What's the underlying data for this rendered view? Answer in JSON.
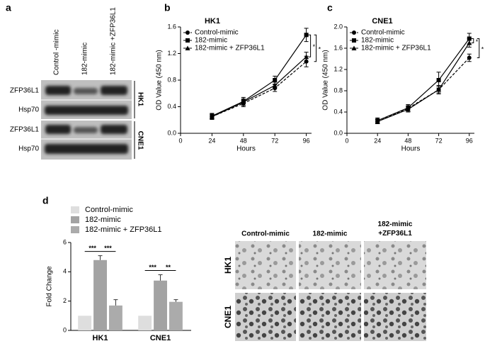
{
  "panel_labels": [
    "a",
    "b",
    "c",
    "d"
  ],
  "blot": {
    "columns": [
      "Control -mimic",
      "182-mimic",
      "182-mimic +ZFP36L1"
    ],
    "rows": [
      "ZFP36L1",
      "Hsp70",
      "ZFP36L1",
      "Hsp70"
    ],
    "groups": [
      "HK1",
      "CNE1"
    ]
  },
  "micrographs": {
    "columns": [
      "Control-mimic",
      "182-mimic",
      "182-mimic +ZFP36L1"
    ],
    "rows": [
      "HK1",
      "CNE1"
    ]
  },
  "chart_data": [
    {
      "type": "line",
      "title": "HK1",
      "xlabel": "Hours",
      "ylabel": "OD Value (450 nm)",
      "x": [
        24,
        48,
        72,
        96
      ],
      "xlim": [
        0,
        100
      ],
      "xticks": [
        0,
        24,
        48,
        72,
        96
      ],
      "ylim": [
        0,
        1.6
      ],
      "yticks": [
        {
          "value": 0,
          "label": "0.0"
        },
        0.4,
        0.8,
        1.2,
        1.6
      ],
      "series": [
        {
          "name": "Control-mimic",
          "color": "#000000",
          "marker": "circle",
          "line_style": "dashed",
          "values": [
            0.25,
            0.45,
            0.68,
            1.08
          ],
          "errors": [
            0.04,
            0.05,
            0.05,
            0.08
          ]
        },
        {
          "name": "182-mimic",
          "color": "#000000",
          "marker": "square",
          "line_style": "solid",
          "values": [
            0.26,
            0.48,
            0.8,
            1.48
          ],
          "errors": [
            0.04,
            0.06,
            0.06,
            0.1
          ]
        },
        {
          "name": "182-mimic + ZFP36L1",
          "color": "#000000",
          "marker": "triangle",
          "line_style": "solid",
          "values": [
            0.25,
            0.47,
            0.72,
            1.15
          ],
          "errors": [
            0.04,
            0.05,
            0.05,
            0.07
          ]
        }
      ],
      "annotations": [
        "*",
        "*"
      ]
    },
    {
      "type": "line",
      "title": "CNE1",
      "xlabel": "Hours",
      "ylabel": "OD Value (450 nm)",
      "x": [
        24,
        48,
        72,
        96
      ],
      "xlim": [
        0,
        100
      ],
      "xticks": [
        0,
        24,
        48,
        72,
        96
      ],
      "ylim": [
        0,
        2
      ],
      "yticks": [
        {
          "value": 0,
          "label": "0.0"
        },
        0.4,
        0.8,
        1.2,
        1.6,
        {
          "value": 2,
          "label": "2.0"
        }
      ],
      "series": [
        {
          "name": "Control-mimic",
          "color": "#000000",
          "marker": "circle",
          "line_style": "dashed",
          "values": [
            0.22,
            0.47,
            0.82,
            1.42
          ],
          "errors": [
            0.04,
            0.05,
            0.06,
            0.07
          ]
        },
        {
          "name": "182-mimic",
          "color": "#000000",
          "marker": "square",
          "line_style": "solid",
          "values": [
            0.24,
            0.48,
            1.0,
            1.78
          ],
          "errors": [
            0.05,
            0.06,
            0.15,
            0.1
          ]
        },
        {
          "name": "182-mimic + ZFP36L1",
          "color": "#000000",
          "marker": "triangle",
          "line_style": "solid",
          "values": [
            0.22,
            0.45,
            0.82,
            1.7
          ],
          "errors": [
            0.04,
            0.05,
            0.08,
            0.08
          ]
        }
      ],
      "annotations": [
        "*",
        "*"
      ]
    },
    {
      "type": "bar",
      "ylabel": "Fold Change",
      "categories": [
        "HK1",
        "CNE1"
      ],
      "ylim": [
        0,
        6
      ],
      "yticks": [
        0,
        2,
        4,
        6
      ],
      "series": [
        {
          "name": "Control-mimic",
          "color": "#dedede",
          "values": [
            1,
            1
          ],
          "errors": [
            0,
            0
          ]
        },
        {
          "name": "182-mimic",
          "color": "#a3a3a3",
          "values": [
            4.8,
            3.4
          ],
          "errors": [
            0.3,
            0.4
          ]
        },
        {
          "name": "182-mimic + ZFP36L1",
          "color": "#ababab",
          "values": [
            1.7,
            1.95
          ],
          "errors": [
            0.4,
            0.15
          ]
        }
      ],
      "annotations": [
        "***",
        "***",
        "***",
        "**"
      ]
    }
  ]
}
